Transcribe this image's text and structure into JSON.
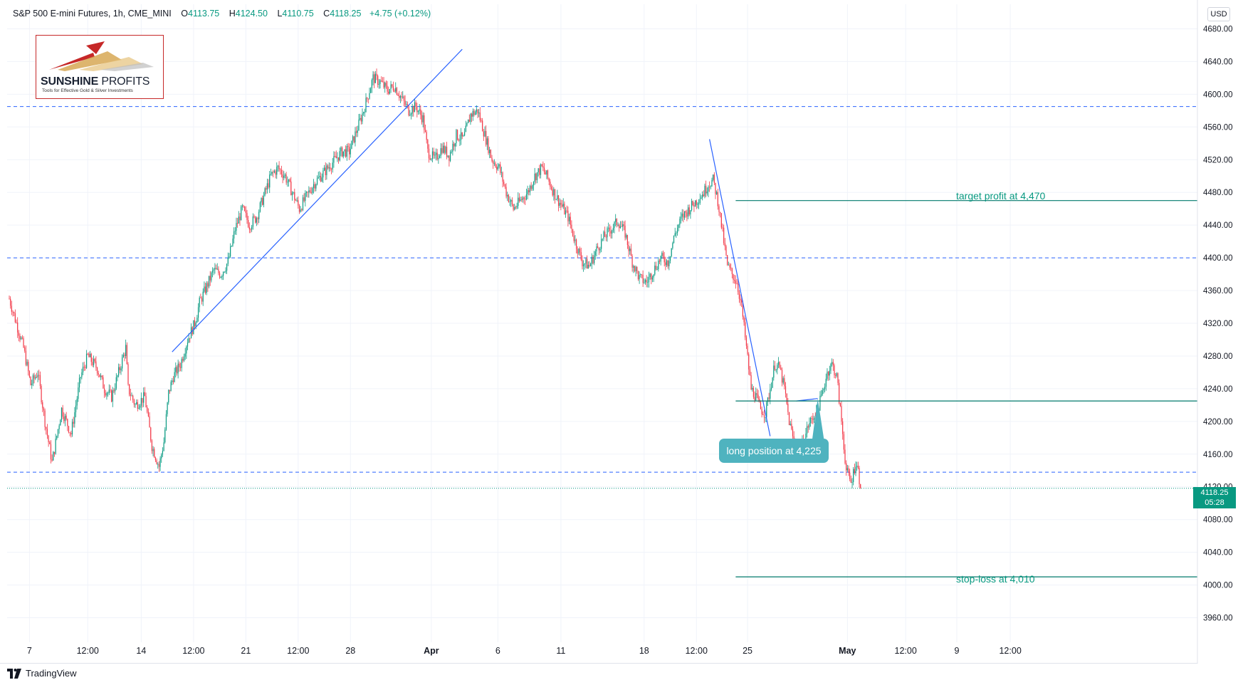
{
  "header": {
    "symbol": "S&P 500 E-mini Futures, 1h, CME_MINI",
    "open_label": "O",
    "open": "4113.75",
    "high_label": "H",
    "high": "4124.50",
    "low_label": "L",
    "low": "4110.75",
    "close_label": "C",
    "close": "4118.25",
    "change": "+4.75 (+0.12%)"
  },
  "currency": "USD",
  "logo": {
    "brand_bold": "SUNSHINE",
    "brand_light": "PROFITS",
    "tagline": "Tools for Effective Gold & Silver Investments"
  },
  "footer": {
    "brand": "TradingView"
  },
  "last_price": {
    "value": "4118.25",
    "countdown": "05:28"
  },
  "annotations": {
    "target": "target profit at 4,470",
    "stop": "stop-loss at 4,010",
    "long": "long position at 4,225"
  },
  "colors": {
    "up": "#089981",
    "down": "#f23645",
    "hline": "#2962ff",
    "trend": "#2962ff",
    "level": "#00796b",
    "callout": "#4fb3bf"
  },
  "chart_data": {
    "type": "candlestick",
    "title": "S&P 500 E-mini Futures, 1h, CME_MINI",
    "timeframe": "1h",
    "ylim": [
      3930,
      4710
    ],
    "y_ticks": [
      3960,
      4000,
      4040,
      4080,
      4120,
      4160,
      4200,
      4240,
      4280,
      4320,
      4360,
      4400,
      4440,
      4480,
      4520,
      4560,
      4600,
      4640,
      4680
    ],
    "y_tick_labels": [
      "3960.00",
      "4000.00",
      "4040.00",
      "4080.00",
      "4120.00",
      "4160.00",
      "4200.00",
      "4240.00",
      "4280.00",
      "4320.00",
      "4360.00",
      "4400.00",
      "4440.00",
      "4480.00",
      "4520.00",
      "4560.00",
      "4600.00",
      "4640.00",
      "4680.00"
    ],
    "x_ticks": [
      {
        "label": "7",
        "bar": 17,
        "bold": false
      },
      {
        "label": "12:00",
        "bar": 66,
        "bold": false
      },
      {
        "label": "14",
        "bar": 111,
        "bold": false
      },
      {
        "label": "12:00",
        "bar": 155,
        "bold": false
      },
      {
        "label": "21",
        "bar": 199,
        "bold": false
      },
      {
        "label": "12:00",
        "bar": 243,
        "bold": false
      },
      {
        "label": "28",
        "bar": 287,
        "bold": false
      },
      {
        "label": "Apr",
        "bar": 355,
        "bold": true
      },
      {
        "label": "6",
        "bar": 411,
        "bold": false
      },
      {
        "label": "11",
        "bar": 464,
        "bold": false
      },
      {
        "label": "18",
        "bar": 534,
        "bold": false
      },
      {
        "label": "12:00",
        "bar": 578,
        "bold": false
      },
      {
        "label": "25",
        "bar": 621,
        "bold": false
      },
      {
        "label": "May",
        "bar": 705,
        "bold": true
      },
      {
        "label": "12:00",
        "bar": 754,
        "bold": false
      },
      {
        "label": "9",
        "bar": 797,
        "bold": false
      },
      {
        "label": "12:00",
        "bar": 842,
        "bold": false
      }
    ],
    "waypoints": [
      [
        0,
        4350
      ],
      [
        6,
        4320
      ],
      [
        12,
        4290
      ],
      [
        18,
        4245
      ],
      [
        24,
        4260
      ],
      [
        30,
        4200
      ],
      [
        36,
        4150
      ],
      [
        44,
        4215
      ],
      [
        52,
        4185
      ],
      [
        60,
        4255
      ],
      [
        66,
        4280
      ],
      [
        74,
        4265
      ],
      [
        80,
        4240
      ],
      [
        86,
        4230
      ],
      [
        92,
        4260
      ],
      [
        98,
        4290
      ],
      [
        100,
        4240
      ],
      [
        106,
        4220
      ],
      [
        114,
        4230
      ],
      [
        120,
        4170
      ],
      [
        126,
        4145
      ],
      [
        130,
        4175
      ],
      [
        134,
        4235
      ],
      [
        138,
        4255
      ],
      [
        144,
        4270
      ],
      [
        150,
        4300
      ],
      [
        156,
        4320
      ],
      [
        160,
        4345
      ],
      [
        166,
        4365
      ],
      [
        172,
        4385
      ],
      [
        178,
        4380
      ],
      [
        184,
        4395
      ],
      [
        190,
        4435
      ],
      [
        196,
        4460
      ],
      [
        202,
        4440
      ],
      [
        208,
        4450
      ],
      [
        214,
        4475
      ],
      [
        220,
        4500
      ],
      [
        226,
        4510
      ],
      [
        232,
        4500
      ],
      [
        238,
        4480
      ],
      [
        244,
        4460
      ],
      [
        250,
        4475
      ],
      [
        256,
        4490
      ],
      [
        262,
        4500
      ],
      [
        268,
        4510
      ],
      [
        274,
        4520
      ],
      [
        280,
        4530
      ],
      [
        286,
        4530
      ],
      [
        292,
        4555
      ],
      [
        298,
        4580
      ],
      [
        302,
        4600
      ],
      [
        306,
        4620
      ],
      [
        312,
        4615
      ],
      [
        318,
        4605
      ],
      [
        324,
        4610
      ],
      [
        330,
        4595
      ],
      [
        336,
        4580
      ],
      [
        342,
        4585
      ],
      [
        348,
        4570
      ],
      [
        352,
        4530
      ],
      [
        358,
        4520
      ],
      [
        364,
        4535
      ],
      [
        370,
        4525
      ],
      [
        376,
        4550
      ],
      [
        382,
        4545
      ],
      [
        388,
        4575
      ],
      [
        394,
        4580
      ],
      [
        400,
        4550
      ],
      [
        406,
        4520
      ],
      [
        412,
        4510
      ],
      [
        418,
        4480
      ],
      [
        424,
        4460
      ],
      [
        430,
        4470
      ],
      [
        436,
        4480
      ],
      [
        442,
        4500
      ],
      [
        448,
        4510
      ],
      [
        452,
        4500
      ],
      [
        458,
        4480
      ],
      [
        464,
        4465
      ],
      [
        470,
        4450
      ],
      [
        476,
        4420
      ],
      [
        482,
        4395
      ],
      [
        488,
        4390
      ],
      [
        494,
        4410
      ],
      [
        500,
        4425
      ],
      [
        506,
        4435
      ],
      [
        512,
        4445
      ],
      [
        518,
        4430
      ],
      [
        524,
        4395
      ],
      [
        530,
        4375
      ],
      [
        536,
        4370
      ],
      [
        542,
        4385
      ],
      [
        548,
        4400
      ],
      [
        554,
        4395
      ],
      [
        560,
        4430
      ],
      [
        566,
        4450
      ],
      [
        572,
        4460
      ],
      [
        578,
        4470
      ],
      [
        584,
        4480
      ],
      [
        588,
        4490
      ],
      [
        592,
        4495
      ],
      [
        596,
        4470
      ],
      [
        600,
        4430
      ],
      [
        604,
        4390
      ],
      [
        608,
        4380
      ],
      [
        612,
        4370
      ],
      [
        616,
        4340
      ],
      [
        620,
        4290
      ],
      [
        624,
        4240
      ],
      [
        628,
        4230
      ],
      [
        632,
        4215
      ],
      [
        636,
        4210
      ],
      [
        640,
        4240
      ],
      [
        644,
        4270
      ],
      [
        648,
        4265
      ],
      [
        652,
        4240
      ],
      [
        656,
        4200
      ],
      [
        660,
        4175
      ],
      [
        664,
        4160
      ],
      [
        668,
        4175
      ],
      [
        672,
        4195
      ],
      [
        676,
        4205
      ],
      [
        680,
        4215
      ],
      [
        684,
        4235
      ],
      [
        688,
        4260
      ],
      [
        692,
        4270
      ],
      [
        696,
        4255
      ],
      [
        700,
        4200
      ],
      [
        704,
        4140
      ],
      [
        708,
        4125
      ],
      [
        712,
        4150
      ],
      [
        714,
        4140
      ],
      [
        716,
        4118
      ]
    ],
    "horizontal_levels": [
      4585,
      4400,
      4138
    ],
    "last_price": 4118.25,
    "trendlines": [
      {
        "from": [
          137,
          4285
        ],
        "to": [
          381,
          4655
        ]
      },
      {
        "from": [
          589,
          4545
        ],
        "to": [
          640,
          4182
        ]
      },
      {
        "from": [
          662,
          4225
        ],
        "to": [
          680,
          4228
        ]
      }
    ],
    "trade_levels": [
      {
        "name": "target profit at 4,470",
        "price": 4470,
        "from_bar": 611
      },
      {
        "name": "long position at 4,225",
        "price": 4225,
        "from_bar": 611
      },
      {
        "name": "stop-loss at 4,010",
        "price": 4010,
        "from_bar": 611
      }
    ]
  }
}
